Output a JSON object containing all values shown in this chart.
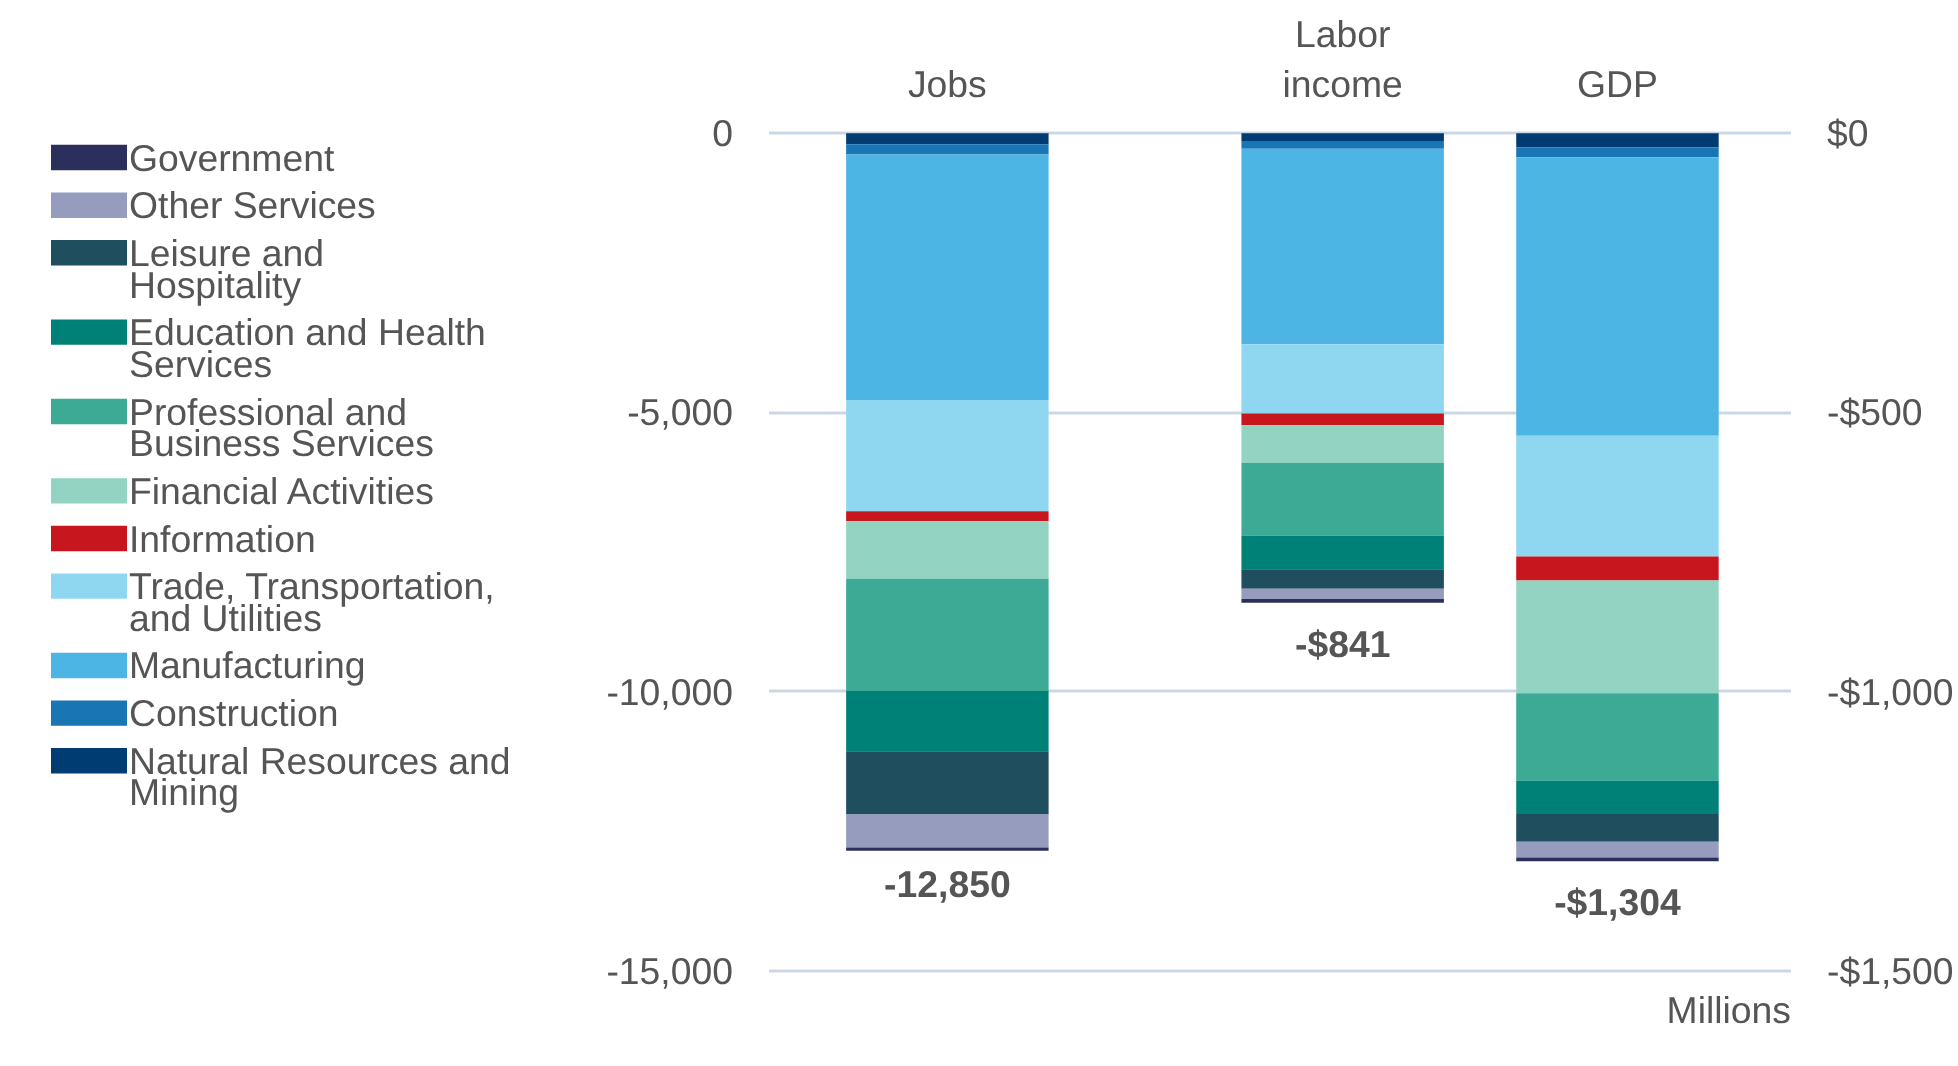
{
  "chart_data": [
    {
      "type": "bar",
      "stacked": true,
      "categories": [
        "Jobs"
      ],
      "ylim": [
        -15000,
        0
      ],
      "yticks": [
        {
          "value": 0,
          "label": "0"
        },
        {
          "value": -5000,
          "label": "-5,000"
        },
        {
          "value": -10000,
          "label": "-10,000"
        },
        {
          "value": -15000,
          "label": "-15,000"
        }
      ],
      "grid": "y",
      "legend": "left",
      "totals": [
        "-12,850"
      ],
      "series": [
        {
          "name": "Natural Resources and Mining",
          "color": "#003c71",
          "values": [
            -200
          ]
        },
        {
          "name": "Construction",
          "color": "#1a75b5",
          "values": [
            -180
          ]
        },
        {
          "name": "Manufacturing",
          "color": "#4db5e4",
          "values": [
            -4400
          ]
        },
        {
          "name": "Trade, Transportation, and Utilities",
          "color": "#8fd7f0",
          "values": [
            -1990
          ]
        },
        {
          "name": "Information",
          "color": "#c8161e",
          "values": [
            -180
          ]
        },
        {
          "name": "Financial Activities",
          "color": "#93d3c2",
          "values": [
            -1030
          ]
        },
        {
          "name": "Professional and Business Services",
          "color": "#3daa96",
          "values": [
            -2010
          ]
        },
        {
          "name": "Education and Health Services",
          "color": "#008177",
          "values": [
            -1080
          ]
        },
        {
          "name": "Leisure and Hospitality",
          "color": "#1f4e5f",
          "values": [
            -1120
          ]
        },
        {
          "name": "Other Services",
          "color": "#969cbd",
          "values": [
            -600
          ]
        },
        {
          "name": "Government",
          "color": "#2b2f5c",
          "values": [
            -60
          ]
        }
      ]
    },
    {
      "type": "bar",
      "stacked": true,
      "categories": [
        "Labor income",
        "GDP"
      ],
      "ylim": [
        -1500,
        0
      ],
      "yticks": [
        {
          "value": 0,
          "label": "$0"
        },
        {
          "value": -500,
          "label": "-$500"
        },
        {
          "value": -1000,
          "label": "-$1,000"
        },
        {
          "value": -1500,
          "label": "-$1,500"
        }
      ],
      "annotations": [
        "Millions"
      ],
      "grid": "y",
      "totals": [
        "-$841",
        "-$1,304"
      ],
      "series": [
        {
          "color": "#003c71",
          "values": [
            -14,
            -25
          ]
        },
        {
          "color": "#1a75b5",
          "values": [
            -14,
            -18
          ]
        },
        {
          "color": "#4db5e4",
          "values": [
            -350,
            -499
          ]
        },
        {
          "color": "#8fd7f0",
          "values": [
            -124,
            -216
          ]
        },
        {
          "color": "#c8161e",
          "values": [
            -21,
            -43
          ]
        },
        {
          "color": "#93d3c2",
          "values": [
            -67,
            -202
          ]
        },
        {
          "color": "#3daa96",
          "values": [
            -131,
            -156
          ]
        },
        {
          "color": "#008177",
          "values": [
            -60,
            -60
          ]
        },
        {
          "color": "#1f4e5f",
          "values": [
            -35,
            -50
          ]
        },
        {
          "color": "#969cbd",
          "values": [
            -18,
            -28
          ]
        },
        {
          "color": "#2b2f5c",
          "values": [
            -7,
            -7
          ]
        }
      ]
    }
  ]
}
